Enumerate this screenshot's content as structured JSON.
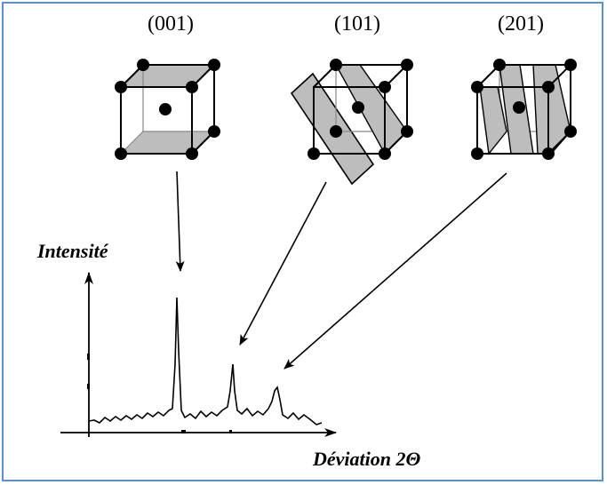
{
  "planes": [
    {
      "label": "(001)"
    },
    {
      "label": "(101)"
    },
    {
      "label": "(201)"
    }
  ],
  "axes": {
    "y_label": "Intensité",
    "x_label": "Déviation 2Θ"
  },
  "colors": {
    "frame": "#5b8fd0",
    "plane_fill": "#bdbdbd",
    "ink": "#000000"
  }
}
